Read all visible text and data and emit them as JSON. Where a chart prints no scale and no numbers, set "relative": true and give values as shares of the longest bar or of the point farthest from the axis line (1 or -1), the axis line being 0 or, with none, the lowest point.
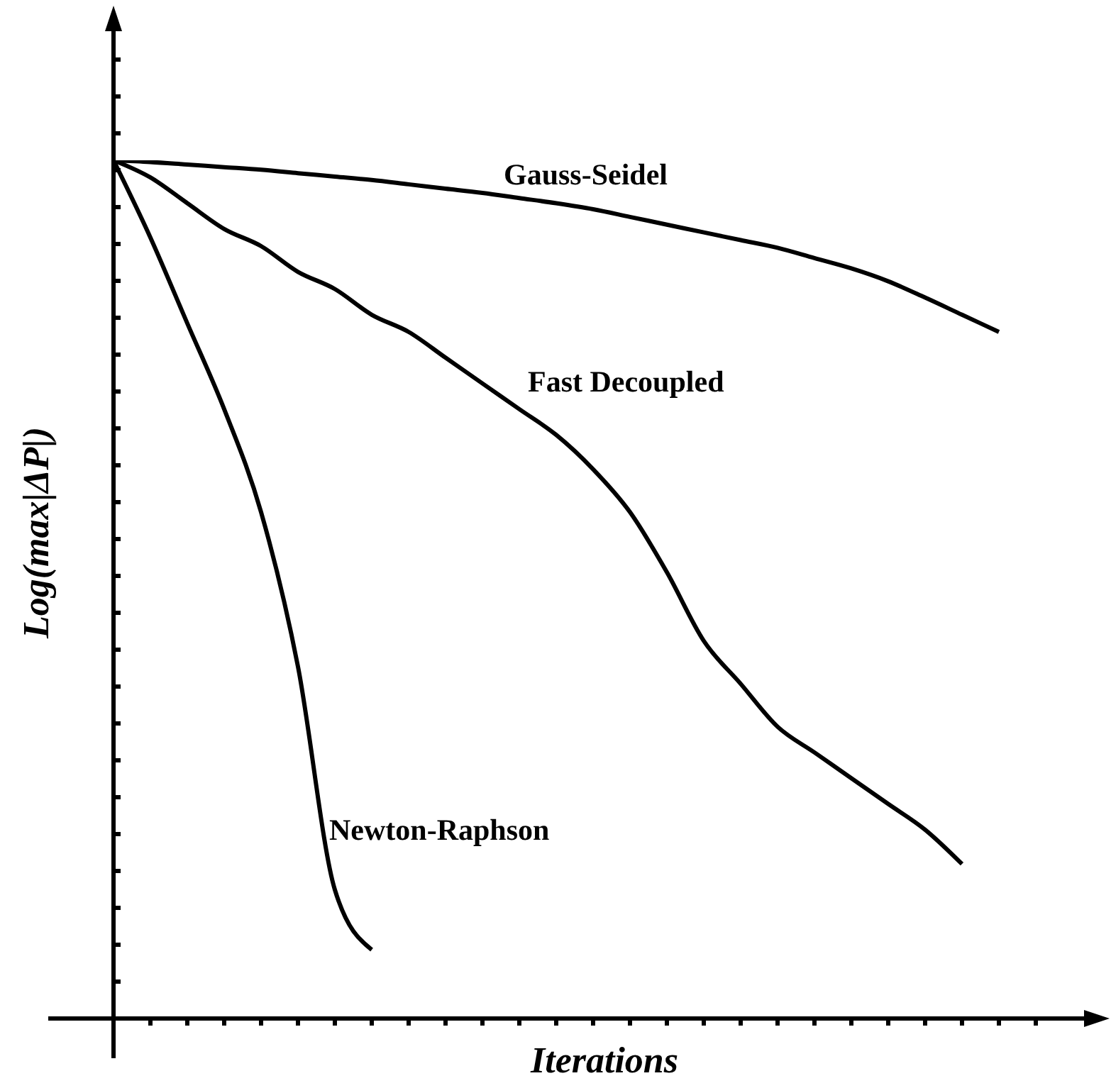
{
  "chart_data": {
    "type": "line",
    "relative": true,
    "xlabel": "Iterations",
    "ylabel": "Log(max|ΔP|)",
    "categories": [
      null,
      null,
      null,
      null,
      null,
      null,
      null,
      null,
      null,
      null,
      null,
      null,
      null,
      null,
      null,
      null,
      null,
      null,
      null,
      null,
      null,
      null,
      null,
      null,
      null,
      null
    ],
    "grid": false,
    "marker": "none",
    "line_style": "solid",
    "series": [
      {
        "name": "Gauss-Seidel",
        "color": "#000000",
        "values": [
          1,
          0.998,
          0.995,
          0.992,
          0.989,
          0.985,
          0.981,
          0.977,
          0.972,
          0.967,
          0.962,
          0.956,
          0.95,
          0.943,
          0.934,
          0.925,
          0.916,
          0.907,
          0.898,
          0.886,
          0.874,
          0.859,
          0.84,
          0.82,
          0.8,
          null
        ]
      },
      {
        "name": "Fast Decoupled",
        "color": "#000000",
        "values": [
          1,
          0.98,
          0.95,
          0.92,
          0.9,
          0.87,
          0.85,
          0.82,
          0.8,
          0.77,
          0.74,
          0.71,
          0.68,
          0.64,
          0.59,
          0.52,
          0.44,
          0.39,
          0.34,
          0.31,
          0.28,
          0.25,
          0.22,
          0.18,
          null,
          null
        ]
      },
      {
        "name": "Newton-Raphson",
        "color": "#000000",
        "values": [
          1,
          0.91,
          0.81,
          0.71,
          0.59,
          0.41,
          0.15,
          0.08,
          null,
          null,
          null,
          null,
          null,
          null,
          null,
          null,
          null,
          null,
          null,
          null,
          null,
          null,
          null,
          null,
          null,
          null
        ]
      }
    ]
  }
}
